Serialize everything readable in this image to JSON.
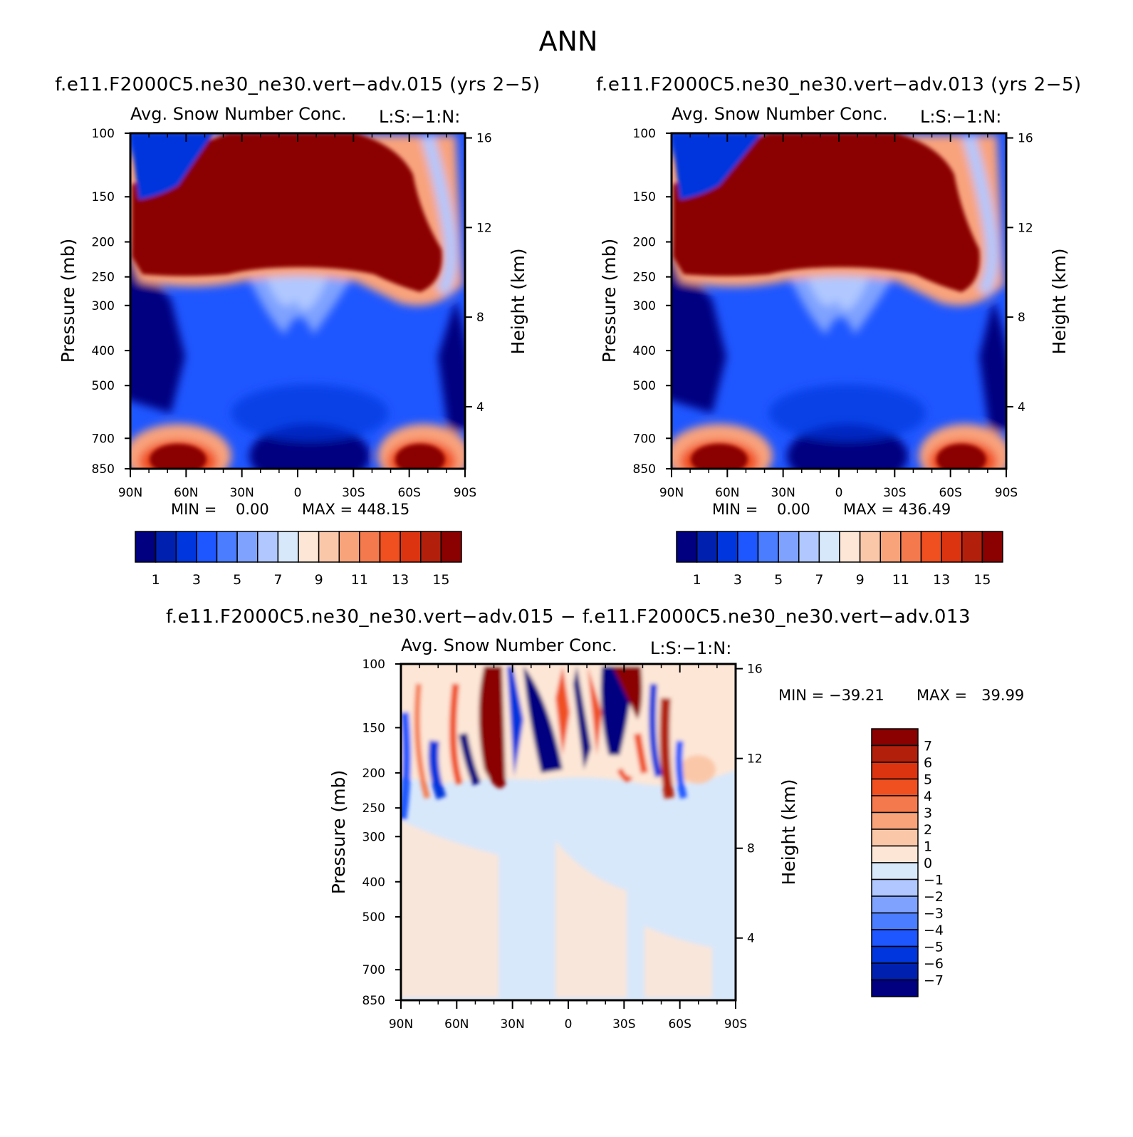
{
  "figure": {
    "season": "ANN",
    "case_test": "f.e11.F2000C5.ne30_ne30.vert−adv.015 (yrs 2−5)",
    "case_ctrl": "f.e11.F2000C5.ne30_ne30.vert−adv.013 (yrs 2−5)",
    "diff_title": "f.e11.F2000C5.ne30_ne30.vert−adv.015 − f.e11.F2000C5.ne30_ne30.vert−adv.013",
    "variable": "Avg. Snow Number Conc.",
    "units": "L:S:−1:N:",
    "ylabel_left": "Pressure (mb)",
    "ylabel_right": "Height (km)",
    "pressure_ticks": [
      "100",
      "150",
      "200",
      "250",
      "300",
      "400",
      "500",
      "700",
      "850"
    ],
    "height_ticks": [
      "16",
      "12",
      "8",
      "4"
    ],
    "lat_ticks": [
      "90N",
      "60N",
      "30N",
      "0",
      "30S",
      "60S",
      "90S"
    ],
    "panel1_min": "MIN =    0.00",
    "panel1_max": "MAX = 448.15",
    "panel2_min": "MIN =    0.00",
    "panel2_max": "MAX = 436.49",
    "diff_min": "MIN = −39.21",
    "diff_max": "MAX =   39.99"
  },
  "colors": {
    "main_scale": [
      "#000080",
      "#0021b0",
      "#0036dd",
      "#1e56ff",
      "#4a7dff",
      "#7fa2ff",
      "#b0c8ff",
      "#d8e8fb",
      "#fde6d6",
      "#fbc7a9",
      "#f9a37b",
      "#f47a4d",
      "#f04f20",
      "#dc3410",
      "#b2200b",
      "#8b0000"
    ],
    "diff_scale": [
      "#000080",
      "#0021b0",
      "#0036dd",
      "#1e56ff",
      "#4a7dff",
      "#7fa2ff",
      "#b0c8ff",
      "#d8e8fb",
      "#fde6d6",
      "#fbc7a9",
      "#f9a37b",
      "#f47a4d",
      "#f04f20",
      "#dc3410",
      "#b2200b",
      "#8b0000"
    ]
  },
  "colorbars": {
    "main_labels": [
      "1",
      "3",
      "5",
      "7",
      "9",
      "11",
      "13",
      "15"
    ],
    "diff_labels": [
      "7",
      "6",
      "5",
      "4",
      "3",
      "2",
      "1",
      "0",
      "−1",
      "−2",
      "−3",
      "−4",
      "−5",
      "−6",
      "−7"
    ]
  },
  "chart_data": [
    {
      "type": "heatmap",
      "title": "Avg. Snow Number Conc.",
      "subtitle": "f.e11.F2000C5.ne30_ne30.vert−adv.015 (yrs 2−5)",
      "xlabel": "",
      "ylabel": "Pressure (mb)",
      "y2label": "Height (km)",
      "x": [
        "90N",
        "60N",
        "30N",
        "0",
        "30S",
        "60S",
        "90S"
      ],
      "y": [
        100,
        150,
        200,
        250,
        300,
        400,
        500,
        700,
        850
      ],
      "xlim": [
        -90,
        90
      ],
      "ylim": [
        100,
        850
      ],
      "levels": [
        1,
        2,
        3,
        4,
        5,
        6,
        7,
        8,
        9,
        10,
        11,
        12,
        13,
        14,
        15
      ],
      "min": 0.0,
      "max": 448.15,
      "features": [
        {
          "region": "upper troposphere 100-270 mb, 75N-65S",
          "value": ">15"
        },
        {
          "region": "lower troposphere 800-850 mb near 70N",
          "value": ">15"
        },
        {
          "region": "lower troposphere 800-850 mb near 65S",
          "value": ">15"
        },
        {
          "region": "mid/low troposphere 90N polar column",
          "value": "<1"
        },
        {
          "region": "700-850 mb around equator",
          "value": "<1"
        }
      ]
    },
    {
      "type": "heatmap",
      "title": "Avg. Snow Number Conc.",
      "subtitle": "f.e11.F2000C5.ne30_ne30.vert−adv.013 (yrs 2−5)",
      "xlabel": "",
      "ylabel": "Pressure (mb)",
      "y2label": "Height (km)",
      "x": [
        "90N",
        "60N",
        "30N",
        "0",
        "30S",
        "60S",
        "90S"
      ],
      "y": [
        100,
        150,
        200,
        250,
        300,
        400,
        500,
        700,
        850
      ],
      "xlim": [
        -90,
        90
      ],
      "ylim": [
        100,
        850
      ],
      "levels": [
        1,
        2,
        3,
        4,
        5,
        6,
        7,
        8,
        9,
        10,
        11,
        12,
        13,
        14,
        15
      ],
      "min": 0.0,
      "max": 436.49,
      "features": [
        {
          "region": "upper troposphere 100-270 mb, 75N-70S",
          "value": ">15"
        },
        {
          "region": "lower troposphere 800-850 mb near 70N",
          "value": ">15"
        },
        {
          "region": "lower troposphere 800-850 mb near 65S",
          "value": ">15"
        },
        {
          "region": "mid/low troposphere 90N polar column",
          "value": "<1"
        },
        {
          "region": "700-850 mb around equator",
          "value": "<1"
        }
      ]
    },
    {
      "type": "heatmap",
      "title": "Avg. Snow Number Conc.",
      "subtitle": "f.e11.F2000C5.ne30_ne30.vert−adv.015 − f.e11.F2000C5.ne30_ne30.vert−adv.013",
      "xlabel": "",
      "ylabel": "Pressure (mb)",
      "y2label": "Height (km)",
      "x": [
        "90N",
        "60N",
        "30N",
        "0",
        "30S",
        "60S",
        "90S"
      ],
      "y": [
        100,
        150,
        200,
        250,
        300,
        400,
        500,
        700,
        850
      ],
      "xlim": [
        -90,
        90
      ],
      "ylim": [
        100,
        850
      ],
      "levels": [
        -7,
        -6,
        -5,
        -4,
        -3,
        -2,
        -1,
        0,
        1,
        2,
        3,
        4,
        5,
        6,
        7
      ],
      "min": -39.21,
      "max": 39.99,
      "features": [
        {
          "region": "100-250 mb, 90N-60S",
          "value": "alternating strong positive/negative bands (|diff| > 7)"
        },
        {
          "region": "300-850 mb",
          "value": "small differences between -1 and 1"
        }
      ]
    }
  ]
}
